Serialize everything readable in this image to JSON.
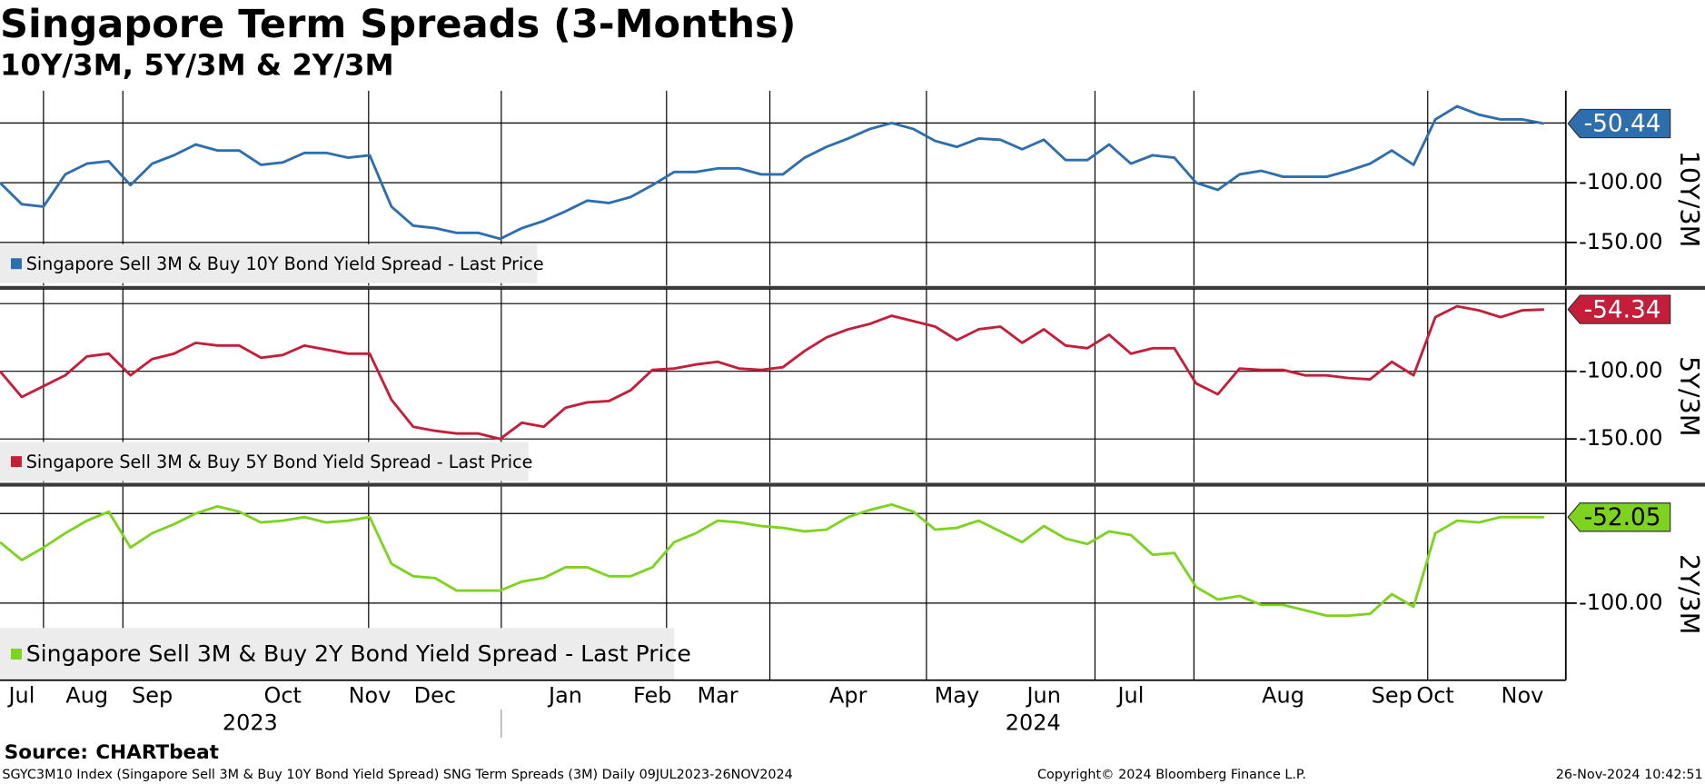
{
  "title": "Singapore Term Spreads (3-Months)",
  "subtitle": "10Y/3M, 5Y/3M & 2Y/3M",
  "source_label": "Source:",
  "source": "CHARTbeat",
  "footer": {
    "left": "SGYC3M10 Index (Singapore Sell 3M & Buy 10Y Bond Yield Spread) SNG Term Spreads (3M)  Daily 09JUL2023-26NOV2024",
    "copyright": "Copyright© 2024 Bloomberg Finance L.P.",
    "timestamp": "26-Nov-2024 10:42:51"
  },
  "chart_data": [
    {
      "type": "line",
      "axis_label": "10Y/3M",
      "ylim": [
        -186,
        -23
      ],
      "yticks": [
        {
          "value": -100,
          "label": "-100.00"
        },
        {
          "value": -150,
          "label": "-150.00"
        }
      ],
      "ygrid": [
        -50,
        -100,
        -150
      ],
      "last_price": -50.44,
      "series": [
        {
          "name": "Singapore Sell 3M & Buy 10Y Bond Yield Spread - Last Price",
          "color": "#2f6ead",
          "values": [
            -100,
            -118,
            -120,
            -93,
            -84,
            -82,
            -102,
            -84,
            -77,
            -68,
            -73,
            -73,
            -85,
            -83,
            -75,
            -75,
            -79,
            -77,
            -120,
            -136,
            -138,
            -142,
            -142,
            -147,
            -138,
            -132,
            -124,
            -115,
            -117,
            -112,
            -102,
            -91,
            -91,
            -88,
            -88,
            -93,
            -93,
            -79,
            -70,
            -63,
            -55,
            -50,
            -55,
            -65,
            -70,
            -63,
            -64,
            -72,
            -64,
            -81,
            -81,
            -68,
            -84,
            -77,
            -79,
            -100,
            -106,
            -93,
            -90,
            -95,
            -95,
            -95,
            -90,
            -84,
            -73,
            -85,
            -47,
            -36,
            -43,
            -47,
            -47,
            -50.44
          ]
        }
      ]
    },
    {
      "type": "line",
      "axis_label": "5Y/3M",
      "ylim": [
        -182,
        -39
      ],
      "yticks": [
        {
          "value": -100,
          "label": "-100.00"
        },
        {
          "value": -150,
          "label": "-150.00"
        }
      ],
      "ygrid": [
        -50,
        -100,
        -150
      ],
      "last_price": -54.34,
      "series": [
        {
          "name": "Singapore Sell 3M & Buy 5Y Bond Yield Spread - Last Price",
          "color": "#c41e3a",
          "values": [
            -100,
            -119,
            -111,
            -103,
            -89,
            -87,
            -103,
            -91,
            -87,
            -79,
            -81,
            -81,
            -90,
            -88,
            -81,
            -84,
            -87,
            -87,
            -121,
            -141,
            -144,
            -146,
            -146,
            -150,
            -138,
            -141,
            -127,
            -123,
            -122,
            -114,
            -99,
            -98,
            -95,
            -93,
            -98,
            -99,
            -97,
            -85,
            -75,
            -69,
            -65,
            -59,
            -63,
            -67,
            -77,
            -69,
            -67,
            -79,
            -69,
            -81,
            -83,
            -73,
            -87,
            -83,
            -83,
            -109,
            -117,
            -98,
            -99,
            -99,
            -103,
            -103,
            -105,
            -106,
            -93,
            -103,
            -60,
            -52,
            -55,
            -60,
            -55,
            -54.34
          ]
        }
      ]
    },
    {
      "type": "line",
      "axis_label": "2Y/3M",
      "ylim": [
        -143,
        -35
      ],
      "yticks": [
        {
          "value": -100,
          "label": "-100.00"
        }
      ],
      "ygrid": [
        -50,
        -100
      ],
      "last_price": -52.05,
      "categories": [
        null,
        "Jul",
        null,
        null,
        "Aug",
        null,
        null,
        "Sep",
        null,
        null,
        null,
        null,
        null,
        "Oct",
        null,
        null,
        null,
        "Nov",
        null,
        null,
        "Dec",
        null,
        null,
        null,
        null,
        null,
        "Jan",
        null,
        null,
        null,
        "Feb",
        null,
        null,
        "Mar",
        null,
        null,
        null,
        null,
        null,
        "Apr",
        null,
        null,
        null,
        null,
        "May",
        null,
        null,
        null,
        "Jun",
        null,
        null,
        null,
        "Jul",
        null,
        null,
        null,
        null,
        null,
        null,
        "Aug",
        null,
        null,
        null,
        null,
        "Sep",
        null,
        "Oct",
        null,
        null,
        null,
        "Nov",
        null
      ],
      "years": [
        2023,
        2024
      ],
      "series": [
        {
          "name": "Singapore Sell 3M & Buy 2Y Bond Yield Spread - Last Price",
          "color": "#7ed321",
          "values": [
            -66,
            -76,
            -69,
            -61,
            -54,
            -49,
            -69,
            -61,
            -56,
            -50,
            -46,
            -49,
            -55,
            -54,
            -52,
            -55,
            -54,
            -52,
            -78,
            -85,
            -86,
            -93,
            -93,
            -93,
            -88,
            -86,
            -80,
            -80,
            -85,
            -85,
            -80,
            -66,
            -61,
            -54,
            -55,
            -57,
            -58,
            -60,
            -59,
            -52,
            -48,
            -45,
            -49,
            -59,
            -58,
            -54,
            -60,
            -66,
            -57,
            -64,
            -67,
            -60,
            -62,
            -73,
            -72,
            -91,
            -98,
            -96,
            -101,
            -101,
            -104,
            -107,
            -107,
            -106,
            -95,
            -102,
            -61,
            -54,
            -55,
            -52,
            -52,
            -52.05
          ]
        }
      ]
    }
  ]
}
